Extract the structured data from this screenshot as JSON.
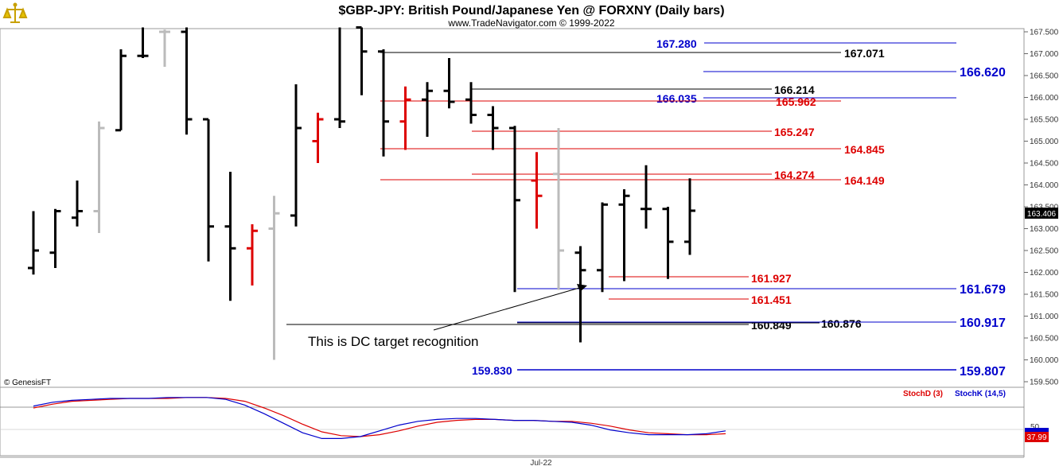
{
  "title": "$GBP-JPY:  British Pound/Japanese Yen @ FORXNY  (Daily bars)",
  "subtitle": "www.TradeNavigator.com © 1999-2022",
  "copyright": "© GenesisFT",
  "logo_icon": "bull-bear-logo-icon",
  "annotation": "This is DC target recognition",
  "x_axis_label": "Jul-22",
  "indicator": {
    "stoch_d_label": "StochD (3)",
    "stoch_k_label": "StochK (14,5)",
    "level_label": "50",
    "last_value": "37.99",
    "stoch_d_color": "#dd0000",
    "stoch_k_color": "#0000cc",
    "stoch_k_values": [
      52,
      56,
      58,
      59,
      60,
      60,
      60,
      61,
      61,
      61,
      59,
      53,
      44,
      34,
      24,
      18,
      18,
      20,
      26,
      32,
      36,
      38,
      39,
      39,
      38,
      37,
      37,
      36,
      35,
      32,
      27,
      24,
      22,
      22,
      22,
      23,
      26
    ],
    "stoch_d_values": [
      50,
      54,
      57,
      58,
      59,
      60,
      60,
      60,
      61,
      61,
      60,
      57,
      50,
      42,
      33,
      25,
      21,
      20,
      22,
      26,
      31,
      35,
      37,
      38,
      38,
      37,
      37,
      36,
      36,
      34,
      31,
      27,
      24,
      23,
      22,
      22,
      23
    ]
  },
  "price_axis": {
    "last_price": "163.406",
    "ticks": [
      "167.500",
      "167.000",
      "166.500",
      "166.000",
      "165.500",
      "165.000",
      "164.500",
      "164.000",
      "163.500",
      "163.000",
      "162.500",
      "162.000",
      "161.500",
      "161.000",
      "160.500",
      "160.000",
      "159.500"
    ]
  },
  "levels": [
    {
      "label": "167.280",
      "color": "#0000cc"
    },
    {
      "label": "167.071",
      "color": "#000000"
    },
    {
      "label": "166.620",
      "color": "#0000cc"
    },
    {
      "label": "166.214",
      "color": "#000000"
    },
    {
      "label": "166.035",
      "color": "#0000cc"
    },
    {
      "label": "165.962",
      "color": "#dd0000"
    },
    {
      "label": "165.247",
      "color": "#dd0000"
    },
    {
      "label": "164.845",
      "color": "#dd0000"
    },
    {
      "label": "164.274",
      "color": "#dd0000"
    },
    {
      "label": "164.149",
      "color": "#dd0000"
    },
    {
      "label": "161.927",
      "color": "#dd0000"
    },
    {
      "label": "161.679",
      "color": "#0000cc"
    },
    {
      "label": "161.451",
      "color": "#dd0000"
    },
    {
      "label": "160.849",
      "color": "#000000"
    },
    {
      "label": "160.876",
      "color": "#000000"
    },
    {
      "label": "160.917",
      "color": "#0000cc"
    },
    {
      "label": "159.830",
      "color": "#0000cc"
    },
    {
      "label": "159.807",
      "color": "#0000cc"
    }
  ],
  "chart_data": {
    "type": "ohlc",
    "title": "$GBP-JPY:  British Pound/Japanese Yen @ FORXNY  (Daily bars)",
    "x_tick_labels": [
      "Jul-22"
    ],
    "ylim": [
      159.5,
      167.5
    ],
    "bar_colors": {
      "black": "#000000",
      "red": "#dd0000",
      "gray": "#bbbbbb"
    },
    "bars": [
      {
        "o": 162.1,
        "h": 163.4,
        "l": 161.95,
        "c": 162.5,
        "color": "black"
      },
      {
        "o": 162.45,
        "h": 163.45,
        "l": 162.1,
        "c": 163.4,
        "color": "black"
      },
      {
        "o": 163.25,
        "h": 164.1,
        "l": 163.05,
        "c": 163.4,
        "color": "black"
      },
      {
        "o": 163.4,
        "h": 165.45,
        "l": 162.9,
        "c": 165.3,
        "color": "gray"
      },
      {
        "o": 165.25,
        "h": 167.1,
        "l": 165.25,
        "c": 166.95,
        "color": "black"
      },
      {
        "o": 166.95,
        "h": 167.6,
        "l": 166.9,
        "c": 166.95,
        "color": "black"
      },
      {
        "o": 167.5,
        "h": 167.55,
        "l": 166.7,
        "c": 167.5,
        "color": "gray"
      },
      {
        "o": 167.5,
        "h": 167.6,
        "l": 165.15,
        "c": 165.5,
        "color": "black"
      },
      {
        "o": 165.5,
        "h": 165.5,
        "l": 162.25,
        "c": 163.05,
        "color": "black"
      },
      {
        "o": 163.05,
        "h": 164.3,
        "l": 161.35,
        "c": 162.55,
        "color": "black"
      },
      {
        "o": 162.55,
        "h": 163.1,
        "l": 161.7,
        "c": 162.95,
        "color": "red"
      },
      {
        "o": 163.0,
        "h": 163.75,
        "l": 160.0,
        "c": 163.35,
        "color": "gray"
      },
      {
        "o": 163.3,
        "h": 166.3,
        "l": 163.05,
        "c": 165.3,
        "color": "black"
      },
      {
        "o": 165.0,
        "h": 165.65,
        "l": 164.5,
        "c": 165.5,
        "color": "red"
      },
      {
        "o": 165.5,
        "h": 167.6,
        "l": 165.3,
        "c": 165.45,
        "color": "black"
      },
      {
        "o": 167.6,
        "h": 167.6,
        "l": 166.05,
        "c": 167.05,
        "color": "black"
      },
      {
        "o": 167.05,
        "h": 167.1,
        "l": 164.65,
        "c": 165.45,
        "color": "black"
      },
      {
        "o": 165.45,
        "h": 166.25,
        "l": 164.8,
        "c": 165.95,
        "color": "red"
      },
      {
        "o": 165.95,
        "h": 166.35,
        "l": 165.1,
        "c": 166.15,
        "color": "black"
      },
      {
        "o": 166.15,
        "h": 166.9,
        "l": 165.75,
        "c": 165.9,
        "color": "black"
      },
      {
        "o": 165.95,
        "h": 166.35,
        "l": 165.4,
        "c": 165.6,
        "color": "black"
      },
      {
        "o": 165.6,
        "h": 165.8,
        "l": 164.8,
        "c": 165.3,
        "color": "black"
      },
      {
        "o": 165.3,
        "h": 165.35,
        "l": 161.55,
        "c": 163.65,
        "color": "black"
      },
      {
        "o": 164.1,
        "h": 164.75,
        "l": 163.0,
        "c": 163.75,
        "color": "red"
      },
      {
        "o": 164.25,
        "h": 165.3,
        "l": 161.6,
        "c": 162.5,
        "color": "gray"
      },
      {
        "o": 162.45,
        "h": 162.6,
        "l": 160.4,
        "c": 162.05,
        "color": "black"
      },
      {
        "o": 162.05,
        "h": 163.6,
        "l": 161.55,
        "c": 163.55,
        "color": "black"
      },
      {
        "o": 163.55,
        "h": 163.9,
        "l": 161.8,
        "c": 163.75,
        "color": "black"
      },
      {
        "o": 163.45,
        "h": 164.45,
        "l": 163.0,
        "c": 163.45,
        "color": "black"
      },
      {
        "o": 163.45,
        "h": 163.5,
        "l": 161.85,
        "c": 162.7,
        "color": "black"
      },
      {
        "o": 162.7,
        "h": 164.15,
        "l": 162.4,
        "c": 163.41,
        "color": "black"
      }
    ]
  }
}
